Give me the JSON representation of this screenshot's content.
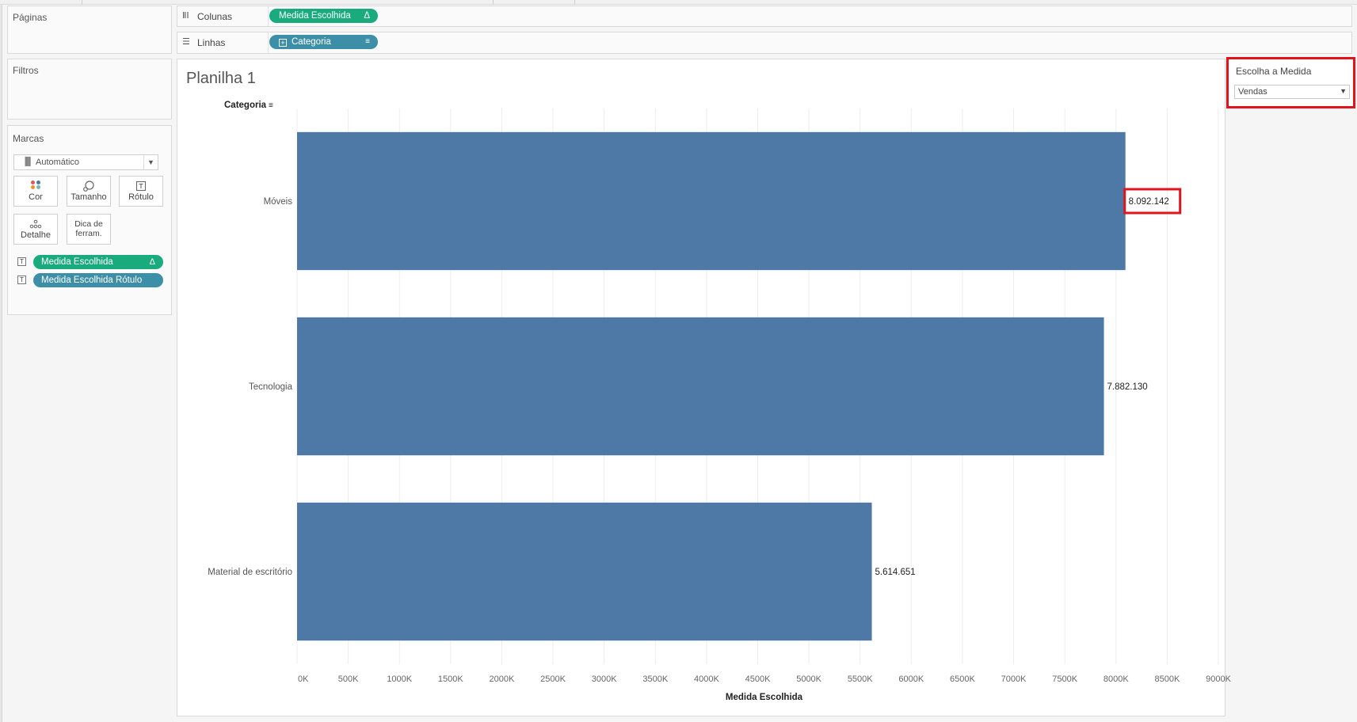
{
  "cards": {
    "pages_title": "Páginas",
    "filters_title": "Filtros",
    "marks_title": "Marcas",
    "mark_type": "Automático",
    "mark_buttons": {
      "color": "Cor",
      "size": "Tamanho",
      "label": "Rótulo",
      "detail": "Detalhe",
      "tooltip_line1": "Dica de",
      "tooltip_line2": "ferram."
    },
    "mark_fields": [
      {
        "label": "Medida Escolhida",
        "has_delta": true,
        "color": "#1aab7c"
      },
      {
        "label": "Medida Escolhida Rótulo",
        "has_delta": false,
        "color": "#3d8fa8"
      }
    ]
  },
  "shelves": {
    "columns_label": "Colunas",
    "columns_pill": "Medida Escolhida",
    "rows_label": "Linhas",
    "rows_pill": "Categoria"
  },
  "sheet": {
    "title": "Planilha 1",
    "row_header": "Categoria"
  },
  "parameter": {
    "title": "Escolha a Medida",
    "value": "Vendas"
  },
  "icons": {
    "delta": "Δ",
    "caret": "▼",
    "sort": "sort-descending-icon"
  },
  "chart_data": {
    "type": "bar",
    "orientation": "horizontal",
    "categories": [
      "Móveis",
      "Tecnologia",
      "Material de escritório"
    ],
    "values": [
      8092142,
      7882130,
      5614651
    ],
    "data_labels": [
      "8.092.142",
      "7.882.130",
      "5.614.651"
    ],
    "xlabel": "Medida Escolhida",
    "ylabel": "Categoria",
    "xlim": [
      0,
      9000000
    ],
    "xticks": [
      0,
      500000,
      1000000,
      1500000,
      2000000,
      2500000,
      3000000,
      3500000,
      4000000,
      4500000,
      5000000,
      5500000,
      6000000,
      6500000,
      7000000,
      7500000,
      8000000,
      8500000,
      9000000
    ],
    "xtick_labels": [
      "0K",
      "500K",
      "1000K",
      "1500K",
      "2000K",
      "2500K",
      "3000K",
      "3500K",
      "4000K",
      "4500K",
      "5000K",
      "5500K",
      "6000K",
      "6500K",
      "7000K",
      "7500K",
      "8000K",
      "8500K",
      "9000K"
    ],
    "bar_color": "#4e79a7",
    "grid": true,
    "highlighted_label": "8.092.142"
  }
}
